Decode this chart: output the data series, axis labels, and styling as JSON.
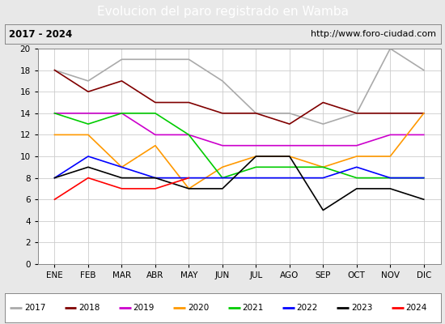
{
  "title": "Evolucion del paro registrado en Wamba",
  "subtitle_left": "2017 - 2024",
  "subtitle_right": "http://www.foro-ciudad.com",
  "months": [
    "ENE",
    "FEB",
    "MAR",
    "ABR",
    "MAY",
    "JUN",
    "JUL",
    "AGO",
    "SEP",
    "OCT",
    "NOV",
    "DIC"
  ],
  "ylim": [
    0,
    20
  ],
  "yticks": [
    0,
    2,
    4,
    6,
    8,
    10,
    12,
    14,
    16,
    18,
    20
  ],
  "series": {
    "2017": {
      "values": [
        18,
        17,
        19,
        19,
        19,
        17,
        14,
        14,
        13,
        14,
        20,
        18
      ],
      "color": "#aaaaaa",
      "linewidth": 1.2
    },
    "2018": {
      "values": [
        18,
        16,
        17,
        15,
        15,
        14,
        14,
        13,
        15,
        14,
        14,
        14
      ],
      "color": "#800000",
      "linewidth": 1.2
    },
    "2019": {
      "values": [
        14,
        14,
        14,
        12,
        12,
        11,
        11,
        11,
        11,
        11,
        12,
        12
      ],
      "color": "#cc00cc",
      "linewidth": 1.2
    },
    "2020": {
      "values": [
        12,
        12,
        9,
        11,
        7,
        9,
        10,
        10,
        9,
        10,
        10,
        14
      ],
      "color": "#ff9900",
      "linewidth": 1.2
    },
    "2021": {
      "values": [
        14,
        13,
        14,
        14,
        12,
        8,
        9,
        9,
        9,
        8,
        8,
        8
      ],
      "color": "#00cc00",
      "linewidth": 1.2
    },
    "2022": {
      "values": [
        8,
        10,
        9,
        8,
        8,
        8,
        8,
        8,
        8,
        9,
        8,
        8
      ],
      "color": "#0000ff",
      "linewidth": 1.2
    },
    "2023": {
      "values": [
        8,
        9,
        8,
        8,
        7,
        7,
        10,
        10,
        5,
        7,
        7,
        6
      ],
      "color": "#000000",
      "linewidth": 1.2
    },
    "2024": {
      "values": [
        6,
        8,
        7,
        7,
        8,
        null,
        null,
        null,
        null,
        null,
        null,
        null
      ],
      "color": "#ff0000",
      "linewidth": 1.2
    }
  },
  "background_color": "#e8e8e8",
  "plot_bg_color": "#ffffff",
  "title_bg_color": "#4472c4",
  "title_color": "#ffffff",
  "title_fontsize": 11,
  "subtitle_fontsize": 8,
  "legend_fontsize": 7.5,
  "axes_fontsize": 7.5,
  "grid_color": "#cccccc"
}
